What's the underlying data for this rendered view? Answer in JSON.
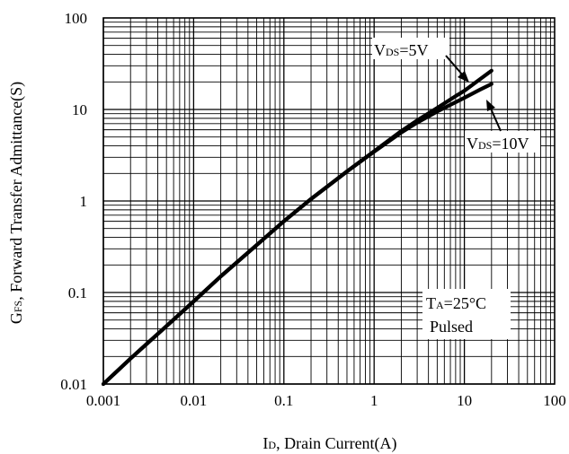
{
  "chart_data": {
    "type": "line",
    "x_scale": "log",
    "y_scale": "log",
    "xlim": [
      0.001,
      100
    ],
    "ylim": [
      0.01,
      100
    ],
    "grid": true,
    "x_ticks": [
      "0.001",
      "0.01",
      "0.1",
      "1",
      "10",
      "100"
    ],
    "y_ticks": [
      "100",
      "10",
      "1",
      "0.1",
      "0.01"
    ],
    "xlabel": {
      "main": "I",
      "sub": "D",
      "rest": ", Drain Current(A)"
    },
    "ylabel": {
      "main": "G",
      "sub": "FS",
      "rest": ", Forward Transfer Admittance(S)"
    },
    "series": [
      {
        "name": "VDS=5V",
        "x": [
          0.001,
          0.002,
          0.005,
          0.01,
          0.02,
          0.05,
          0.1,
          0.2,
          0.5,
          1,
          2,
          3,
          5,
          8,
          10,
          15,
          20
        ],
        "y": [
          0.01,
          0.019,
          0.043,
          0.08,
          0.15,
          0.33,
          0.6,
          1.05,
          2.1,
          3.5,
          5.8,
          7.6,
          10.4,
          14.0,
          16.0,
          21.5,
          26.5
        ]
      },
      {
        "name": "VDS=10V",
        "x": [
          0.001,
          0.002,
          0.005,
          0.01,
          0.02,
          0.05,
          0.1,
          0.2,
          0.5,
          1,
          2,
          3,
          5,
          8,
          10,
          15,
          20
        ],
        "y": [
          0.01,
          0.019,
          0.043,
          0.08,
          0.15,
          0.33,
          0.6,
          1.05,
          2.1,
          3.45,
          5.6,
          7.2,
          9.5,
          12.0,
          13.4,
          16.5,
          19.0
        ]
      }
    ],
    "annotations": [
      {
        "id": "vds5",
        "main": "V",
        "sub": "DS",
        "rest": "=5V"
      },
      {
        "id": "vds10",
        "main": "V",
        "sub": "DS",
        "rest": "=10V"
      },
      {
        "id": "ta",
        "main": "T",
        "sub": "A",
        "rest": "=25°C"
      },
      {
        "id": "pulsed",
        "text": "Pulsed"
      }
    ]
  }
}
